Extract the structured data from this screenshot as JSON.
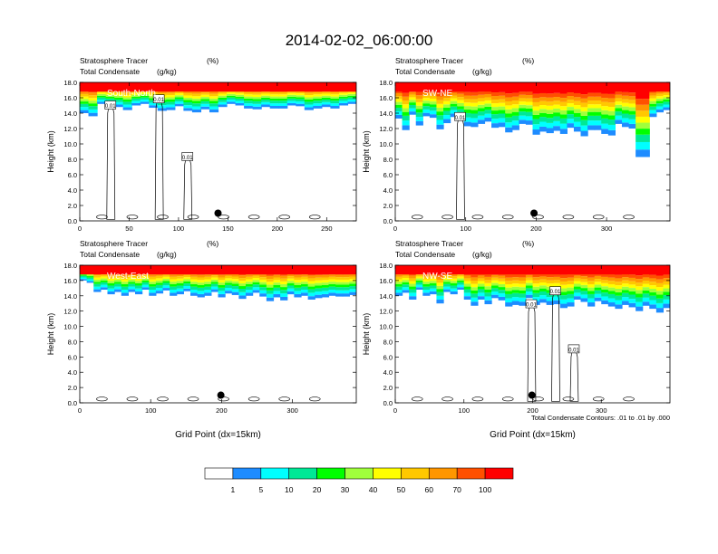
{
  "figure": {
    "title": "2014-02-02_06:00:00",
    "note": "Total Condensate Contours: .01 to .01 by .000"
  },
  "colors": {
    "bins": [
      "#ffffff",
      "#1e8cff",
      "#00ffff",
      "#00e896",
      "#00ff00",
      "#a0ff3c",
      "#ffff00",
      "#ffc800",
      "#ff9600",
      "#ff5000",
      "#ff0000"
    ],
    "contour": "#000000",
    "marker": "#000000"
  },
  "colorbar": {
    "labels": [
      "1",
      "5",
      "10",
      "20",
      "30",
      "40",
      "50",
      "60",
      "70",
      "100"
    ]
  },
  "chart_data": [
    {
      "type": "heatmap",
      "name": "South-North",
      "title_left_1": "Stratosphere Tracer",
      "unit_1": "(%)",
      "title_left_2": "Total Condensate",
      "unit_2": "(g/kg)",
      "ylabel": "Height (km)",
      "xlabel": "",
      "xlim": [
        0,
        280
      ],
      "ylim": [
        0,
        18
      ],
      "xticks": [
        "0",
        "50",
        "100",
        "150",
        "200",
        "250"
      ],
      "yticks": [
        "0.0",
        "2.0",
        "4.0",
        "6.0",
        "8.0",
        "10.0",
        "12.0",
        "14.0",
        "16.0",
        "18.0"
      ],
      "contour_labels": [
        {
          "text": "0.01",
          "x": 31,
          "y": 15.0
        },
        {
          "text": "0.01",
          "x": 80,
          "y": 15.8
        },
        {
          "text": "0.01",
          "x": 109,
          "y": 8.3
        }
      ],
      "marker": {
        "x": 140,
        "y": 1.0
      },
      "tracer_base_km": [
        14.0,
        13.6,
        15.2,
        15.0,
        14.8,
        14.4,
        15.0,
        15.2,
        14.7,
        14.3,
        14.4,
        14.9,
        14.3,
        14.1,
        14.5,
        14.1,
        14.8,
        15.2,
        15.0,
        14.6,
        14.5,
        14.8,
        14.6,
        14.6,
        15.0,
        14.9,
        14.4,
        14.6,
        14.8,
        14.6,
        15.0,
        15.2
      ]
    },
    {
      "type": "heatmap",
      "name": "SW-NE",
      "title_left_1": "Stratosphere Tracer",
      "unit_1": "(%)",
      "title_left_2": "Total Condensate",
      "unit_2": "(g/kg)",
      "ylabel": "Height (km)",
      "xlabel": "",
      "xlim": [
        0,
        390
      ],
      "ylim": [
        0,
        18
      ],
      "xticks": [
        "0",
        "100",
        "200",
        "300"
      ],
      "yticks": [
        "0.0",
        "2.0",
        "4.0",
        "6.0",
        "8.0",
        "10.0",
        "12.0",
        "14.0",
        "16.0",
        "18.0"
      ],
      "contour_labels": [
        {
          "text": "0.01",
          "x": 92,
          "y": 13.5
        }
      ],
      "marker": {
        "x": 197,
        "y": 1.0
      },
      "tracer_base_km": [
        13.3,
        11.8,
        13.8,
        12.4,
        13.6,
        13.4,
        11.9,
        12.7,
        13.5,
        13.0,
        12.3,
        12.2,
        12.6,
        12.9,
        12.1,
        12.2,
        11.5,
        11.8,
        12.6,
        12.5,
        11.2,
        11.6,
        11.4,
        11.7,
        11.3,
        12.1,
        11.6,
        11.0,
        11.8,
        11.8,
        11.3,
        11.1,
        12.6,
        12.2,
        12.0,
        8.3,
        8.3,
        13.5,
        14.1,
        14.4
      ]
    },
    {
      "type": "heatmap",
      "name": "West-East",
      "title_left_1": "Stratosphere Tracer",
      "unit_1": "(%)",
      "title_left_2": "Total Condensate",
      "unit_2": "(g/kg)",
      "ylabel": "Height (km)",
      "xlabel": "Grid Point (dx=15km)",
      "xlim": [
        0,
        390
      ],
      "ylim": [
        0,
        18
      ],
      "xticks": [
        "0",
        "100",
        "200",
        "300"
      ],
      "yticks": [
        "0.0",
        "2.0",
        "4.0",
        "6.0",
        "8.0",
        "10.0",
        "12.0",
        "14.0",
        "16.0",
        "18.0"
      ],
      "contour_labels": [],
      "marker": {
        "x": 199,
        "y": 1.0
      },
      "tracer_base_km": [
        16.0,
        15.7,
        14.5,
        14.8,
        14.2,
        14.5,
        14.0,
        14.5,
        14.2,
        14.8,
        14.0,
        14.3,
        14.7,
        14.0,
        14.2,
        14.6,
        14.0,
        13.8,
        14.0,
        14.5,
        13.8,
        14.3,
        14.1,
        13.6,
        14.0,
        14.4,
        13.9,
        13.3,
        13.8,
        13.4,
        14.2,
        13.8,
        14.0,
        13.5,
        13.7,
        13.8,
        14.0,
        13.9,
        13.9,
        14.1
      ]
    },
    {
      "type": "heatmap",
      "name": "NW-SE",
      "title_left_1": "Stratosphere Tracer",
      "unit_1": "(%)",
      "title_left_2": "Total Condensate",
      "unit_2": "(g/kg)",
      "ylabel": "Height (km)",
      "xlabel": "Grid Point (dx=15km)",
      "xlim": [
        0,
        400
      ],
      "ylim": [
        0,
        18
      ],
      "xticks": [
        "0",
        "100",
        "200",
        "300"
      ],
      "yticks": [
        "0.0",
        "2.0",
        "4.0",
        "6.0",
        "8.0",
        "10.0",
        "12.0",
        "14.0",
        "16.0",
        "18.0"
      ],
      "contour_labels": [
        {
          "text": "0.01",
          "x": 233,
          "y": 14.6
        },
        {
          "text": "0.01",
          "x": 198,
          "y": 12.9
        },
        {
          "text": "0.01",
          "x": 260,
          "y": 7.0
        }
      ],
      "marker": {
        "x": 199,
        "y": 1.0
      },
      "tracer_base_km": [
        14.0,
        14.4,
        13.5,
        14.8,
        14.0,
        14.2,
        13.0,
        14.5,
        14.2,
        14.8,
        13.5,
        12.7,
        13.5,
        12.9,
        13.7,
        13.4,
        12.6,
        12.8,
        12.7,
        13.7,
        12.8,
        13.1,
        12.8,
        12.9,
        12.4,
        12.6,
        13.5,
        13.2,
        12.6,
        13.3,
        12.9,
        12.6,
        12.3,
        12.8,
        12.5,
        12.0,
        12.7,
        12.3,
        11.8,
        12.4
      ]
    }
  ]
}
